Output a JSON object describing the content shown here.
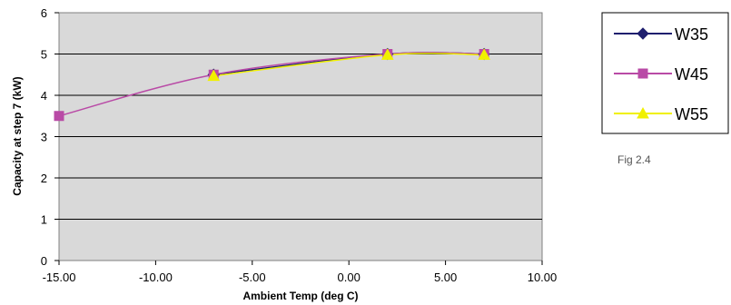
{
  "caption": "Fig 2.4",
  "chart_data": {
    "type": "line",
    "title": "",
    "xlabel": "Ambient Temp (deg C)",
    "ylabel": "Capacity at step 7 (kW)",
    "xlim": [
      -15,
      10
    ],
    "ylim": [
      0,
      6
    ],
    "x_ticks": [
      "-15.00",
      "-10.00",
      "-5.00",
      "0.00",
      "5.00",
      "10.00"
    ],
    "y_ticks": [
      "0",
      "1",
      "2",
      "3",
      "4",
      "5",
      "6"
    ],
    "grid": "horizontal",
    "plot_background": "#d9d9d9",
    "legend_position": "right",
    "series": [
      {
        "name": "W35",
        "color": "#1f1f6e",
        "marker": "diamond",
        "x": [
          -7,
          2,
          7
        ],
        "y": [
          4.5,
          5.0,
          5.0
        ]
      },
      {
        "name": "W45",
        "color": "#b94aa6",
        "marker": "square",
        "x": [
          -15,
          -7,
          2,
          7
        ],
        "y": [
          3.5,
          4.5,
          5.0,
          5.0
        ]
      },
      {
        "name": "W55",
        "color": "#f0f000",
        "marker": "triangle",
        "x": [
          -7,
          2,
          7
        ],
        "y": [
          4.47,
          4.98,
          4.98
        ]
      }
    ]
  }
}
